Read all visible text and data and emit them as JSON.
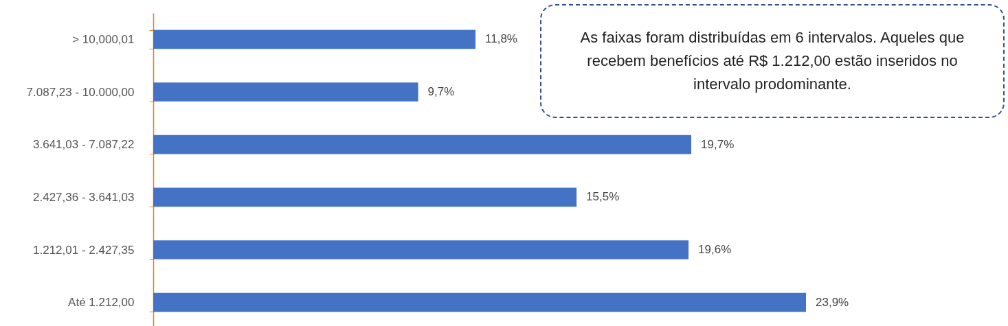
{
  "chart_data": {
    "type": "bar",
    "orientation": "horizontal",
    "categories": [
      "> 10,000,01",
      "7.087,23 - 10.000,00",
      "3.641,03 - 7.087,22",
      "2.427,36 - 3.641,03",
      "1.212,01 - 2.427,35",
      "Até 1.212,00"
    ],
    "values": [
      11.8,
      9.7,
      19.7,
      15.5,
      19.6,
      23.9
    ],
    "value_labels": [
      "11,8%",
      "9,7%",
      "19,7%",
      "15,5%",
      "19,6%",
      "23,9%"
    ],
    "color": "#4472c4",
    "grid": false,
    "annotations": [
      "As faixas foram distribuídas em 6 intervalos. Aqueles que recebem benefícios até R$ 1.212,00 estão inseridos no intervalo prodominante."
    ]
  }
}
